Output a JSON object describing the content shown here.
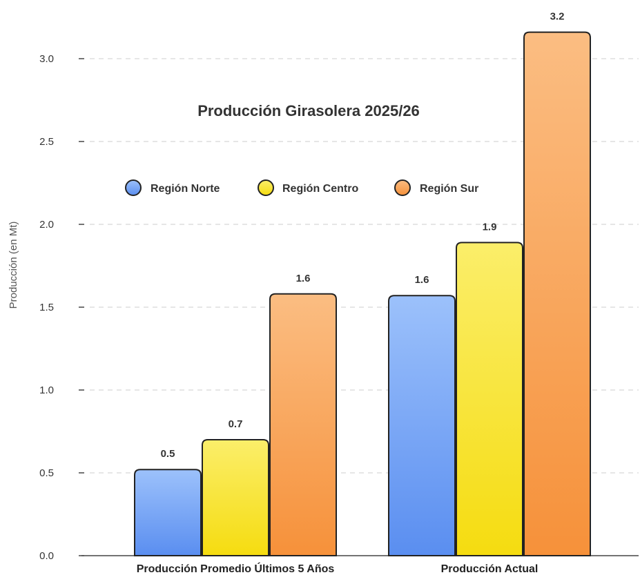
{
  "chart_data": {
    "type": "bar",
    "title": "Producción Girasolera 2025/26",
    "xlabel": "",
    "ylabel": "Producción (en Mt)",
    "categories": [
      "Producción Promedio Últimos 5 Años",
      "Producción Actual"
    ],
    "series": [
      {
        "name": "Región Norte",
        "values": [
          0.52,
          1.57
        ],
        "labels": [
          "0.5",
          "1.6"
        ],
        "color": "#6a9ef0"
      },
      {
        "name": "Región Centro",
        "values": [
          0.7,
          1.89
        ],
        "labels": [
          "0.7",
          "1.9"
        ],
        "color": "#f6e11c"
      },
      {
        "name": "Región Sur",
        "values": [
          1.58,
          3.16
        ],
        "labels": [
          "1.6",
          "3.2"
        ],
        "color": "#f79e4a"
      }
    ],
    "yticks": [
      "0.0",
      "0.5",
      "1.0",
      "1.5",
      "2.0",
      "2.5",
      "3.0"
    ],
    "ylim": [
      0,
      3.3
    ],
    "grid": true,
    "legend_position": "top-left"
  }
}
